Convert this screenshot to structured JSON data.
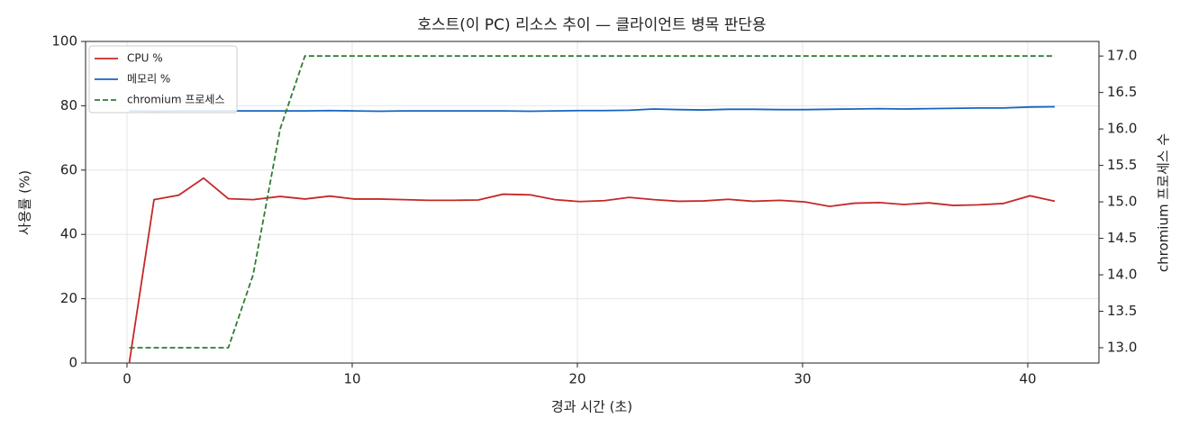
{
  "chart_data": {
    "type": "line",
    "title": "호스트(이 PC) 리소스 추이 — 클라이언트 병목 판단용",
    "xlabel": "경과 시간 (초)",
    "ylabel": "사용률 (%)",
    "y2label": "chromium 프로세스 수",
    "x": [
      0.1,
      1.2,
      2.3,
      3.4,
      4.5,
      5.6,
      6.8,
      7.9,
      9.0,
      10.1,
      11.2,
      12.3,
      13.4,
      14.5,
      15.6,
      16.7,
      17.9,
      19.0,
      20.1,
      21.2,
      22.3,
      23.4,
      24.5,
      25.6,
      26.7,
      27.8,
      29.0,
      30.1,
      31.2,
      32.3,
      33.4,
      34.5,
      35.6,
      36.7,
      37.8,
      38.9,
      40.1,
      41.2
    ],
    "series": [
      {
        "name": "CPU %",
        "color": "#c62828",
        "dash": false,
        "values": [
          0,
          50.8,
          52.2,
          57.5,
          51.1,
          50.8,
          51.8,
          51.0,
          51.9,
          51.0,
          51.0,
          50.8,
          50.6,
          50.6,
          50.7,
          52.5,
          52.3,
          50.8,
          50.2,
          50.5,
          51.5,
          50.8,
          50.3,
          50.4,
          50.9,
          50.3,
          50.6,
          50.1,
          48.7,
          49.7,
          49.9,
          49.3,
          49.8,
          49.0,
          49.2,
          49.6,
          52.0,
          50.3
        ]
      },
      {
        "name": "메모리 %",
        "color": "#1565c0",
        "dash": false,
        "values": [
          78.4,
          78.3,
          78.4,
          78.4,
          78.4,
          78.4,
          78.4,
          78.4,
          78.5,
          78.4,
          78.3,
          78.4,
          78.4,
          78.4,
          78.4,
          78.4,
          78.3,
          78.4,
          78.5,
          78.5,
          78.6,
          79.0,
          78.8,
          78.7,
          78.9,
          78.9,
          78.8,
          78.8,
          78.9,
          79.0,
          79.1,
          79.0,
          79.1,
          79.2,
          79.3,
          79.3,
          79.6,
          79.7
        ]
      },
      {
        "name": "chromium 프로세스",
        "color": "#2e7d32",
        "dash": true,
        "axis": "y2",
        "values": [
          13,
          13,
          13,
          13,
          13,
          14,
          16,
          17,
          17,
          17,
          17,
          17,
          17,
          17,
          17,
          17,
          17,
          17,
          17,
          17,
          17,
          17,
          17,
          17,
          17,
          17,
          17,
          17,
          17,
          17,
          17,
          17,
          17,
          17,
          17,
          17,
          17,
          17
        ]
      }
    ],
    "xlim": [
      -1.84,
      43.16
    ],
    "xticks": [
      0,
      10,
      20,
      30,
      40
    ],
    "ylim": [
      0,
      100
    ],
    "yticks": [
      0,
      20,
      40,
      60,
      80,
      100
    ],
    "y2lim": [
      12.79,
      17.2
    ],
    "y2ticks": [
      {
        "value": 13,
        "label": "13.0"
      },
      13.5,
      {
        "value": 14,
        "label": "14.0"
      },
      14.5,
      {
        "value": 15,
        "label": "15.0"
      },
      15.5,
      {
        "value": 16,
        "label": "16.0"
      },
      16.5,
      {
        "value": 17,
        "label": "17.0"
      }
    ],
    "grid": true,
    "legend": "upper left"
  }
}
